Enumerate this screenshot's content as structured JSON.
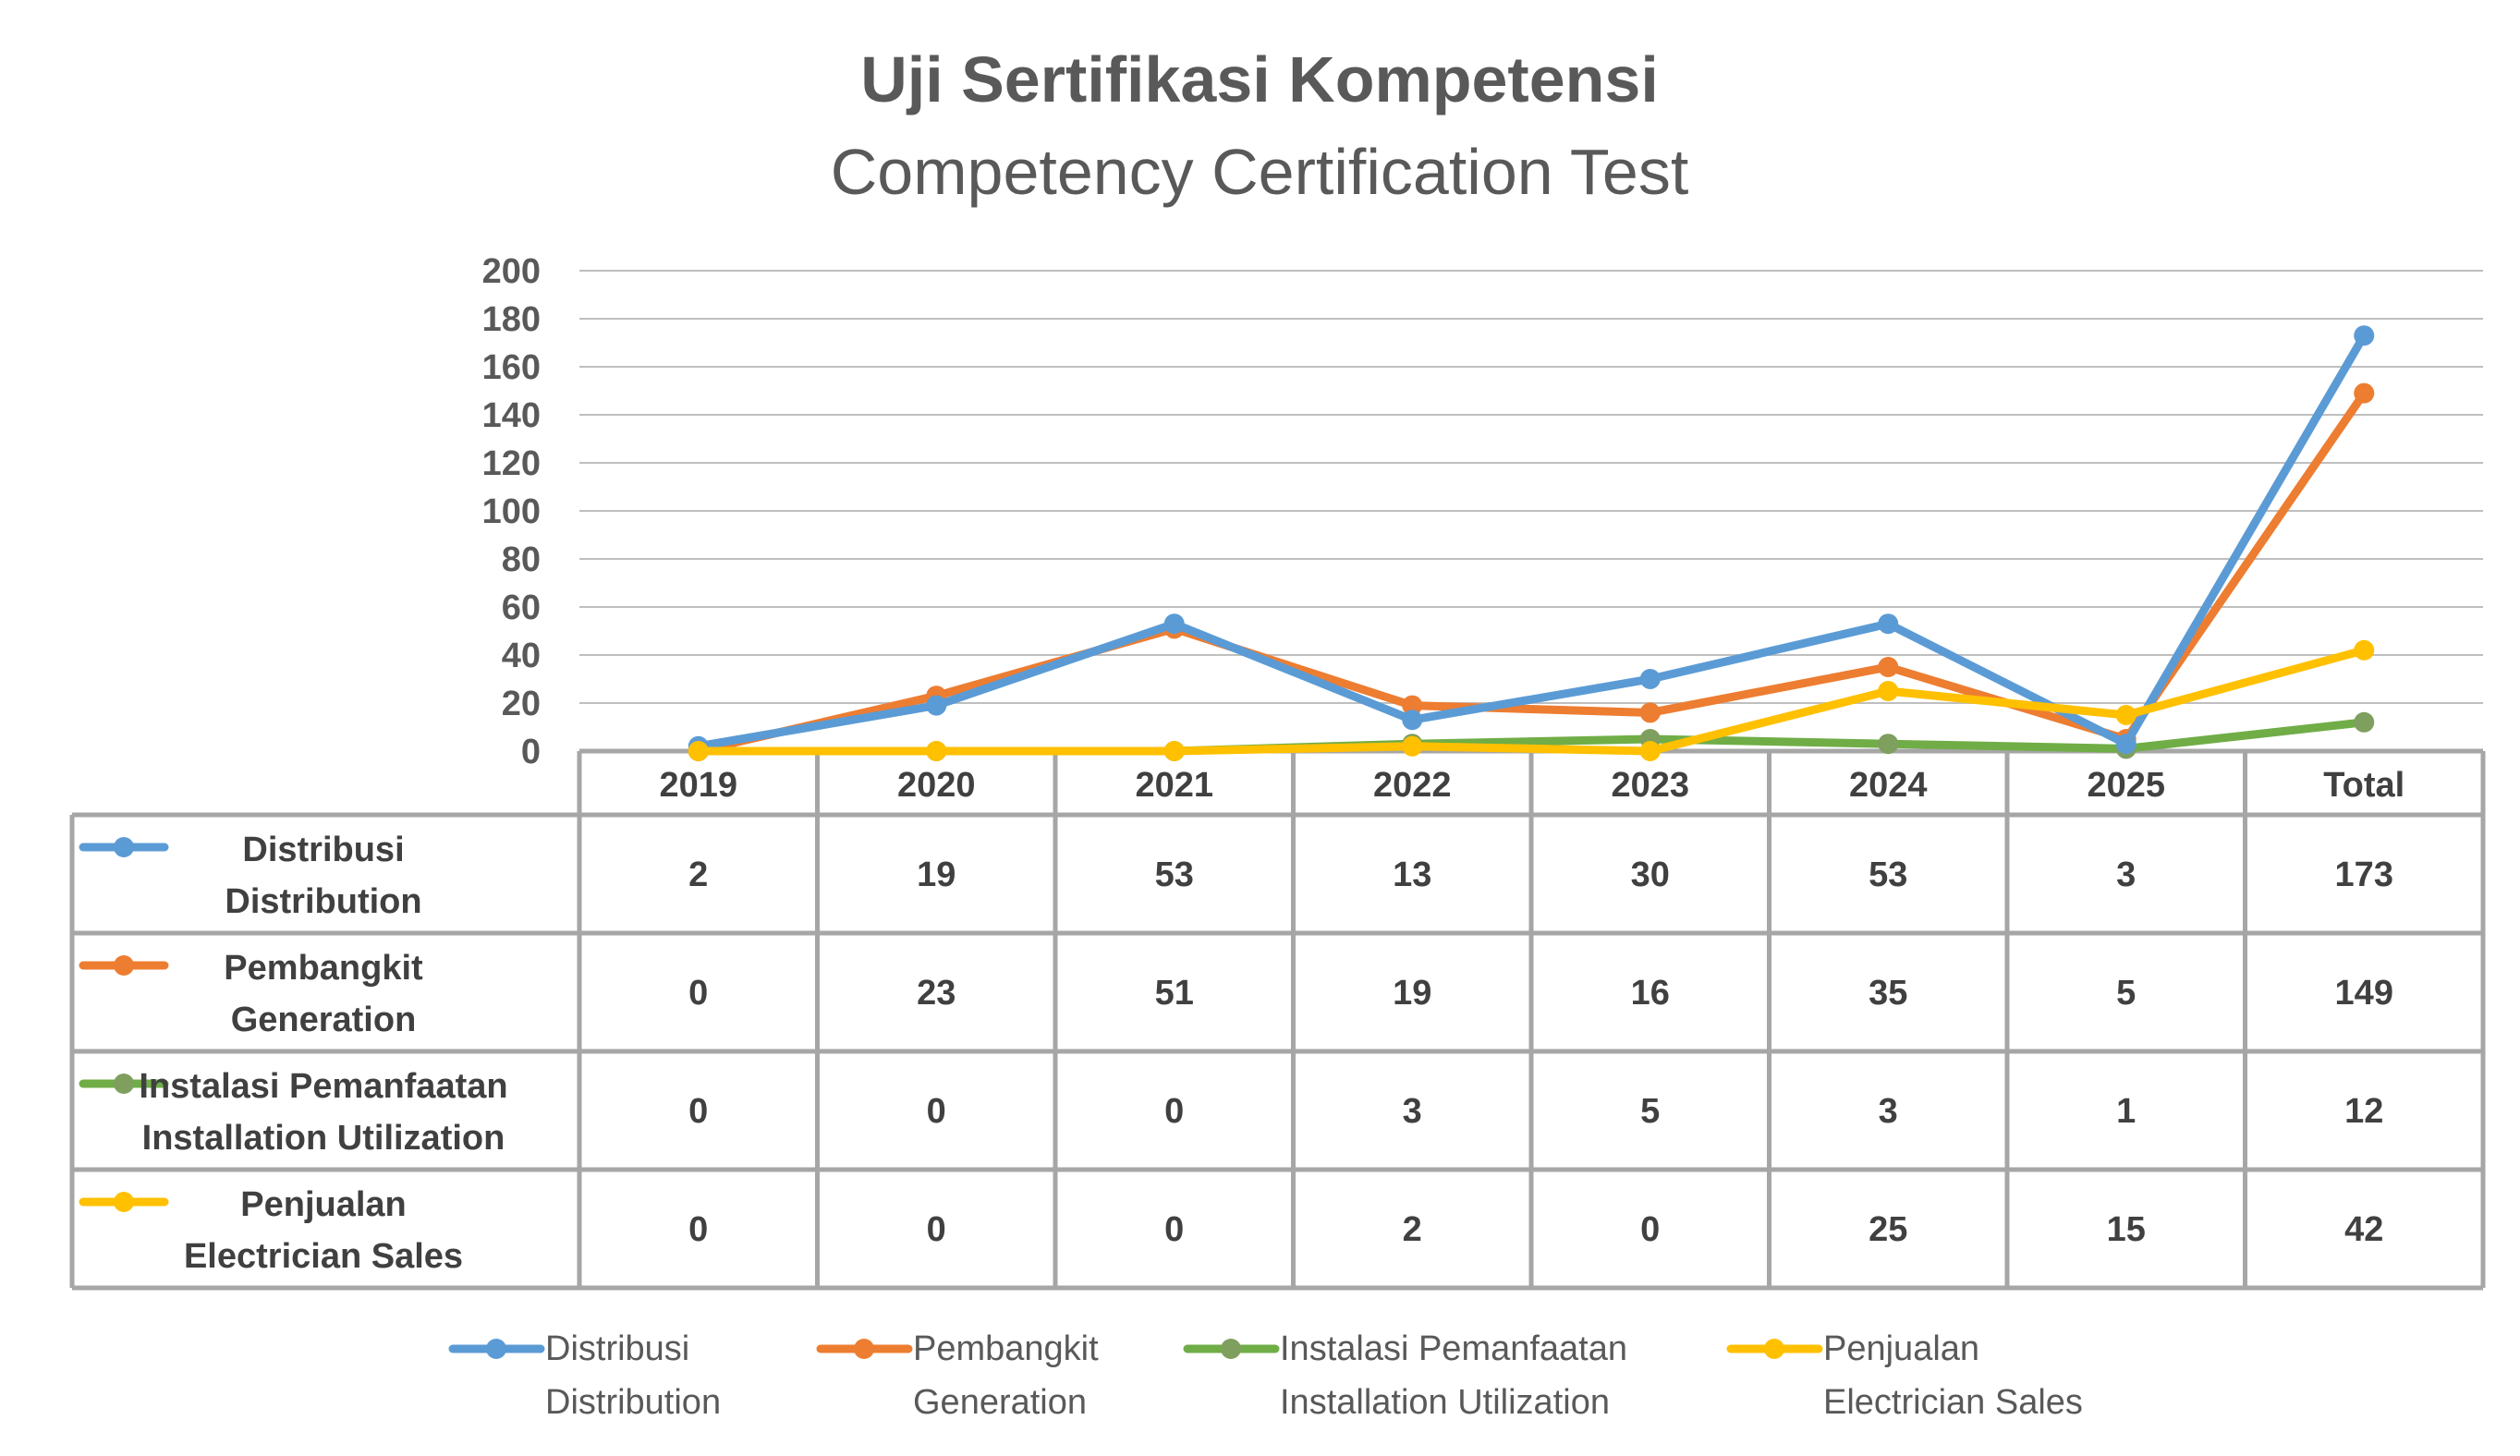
{
  "chart_data": {
    "type": "line",
    "title": "Uji Sertifikasi Kompetensi",
    "subtitle": "Competency Certification Test",
    "categories": [
      "2019",
      "2020",
      "2021",
      "2022",
      "2023",
      "2024",
      "2025",
      "Total"
    ],
    "ylim": [
      0,
      200
    ],
    "yticks": [
      "0",
      "20",
      "40",
      "60",
      "80",
      "100",
      "120",
      "140",
      "160",
      "180",
      "200"
    ],
    "grid": true,
    "legend_position": "bottom",
    "data_table": true,
    "series": [
      {
        "name_line1": "Distribusi",
        "name_line2": "Distribution",
        "color": "#5B9BD5",
        "values": [
          2,
          19,
          53,
          13,
          30,
          53,
          3,
          173
        ]
      },
      {
        "name_line1": "Pembangkit",
        "name_line2": "Generation",
        "color": "#ED7D31",
        "values": [
          0,
          23,
          51,
          19,
          16,
          35,
          5,
          149
        ]
      },
      {
        "name_line1": "Instalasi Pemanfaatan",
        "name_line2": "Installation Utilization",
        "color": "#70AD47",
        "marker_color": "#7F9F5F",
        "values": [
          0,
          0,
          0,
          3,
          5,
          3,
          1,
          12
        ]
      },
      {
        "name_line1": "Penjualan",
        "name_line2": "Electrician Sales",
        "color": "#FFC000",
        "values": [
          0,
          0,
          0,
          2,
          0,
          25,
          15,
          42
        ]
      }
    ]
  }
}
